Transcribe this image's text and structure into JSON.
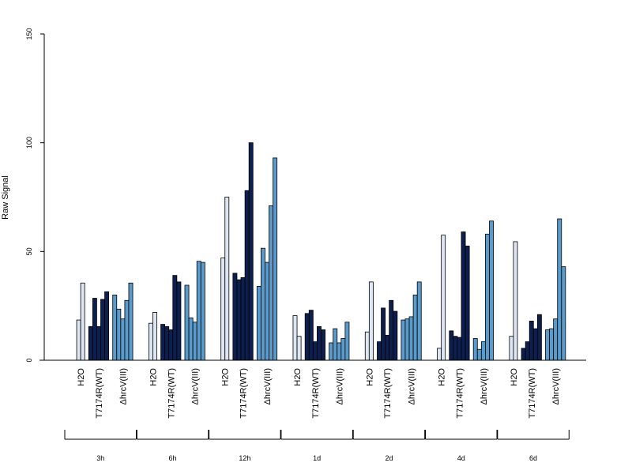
{
  "chart_data": {
    "type": "bar",
    "ylabel": "Raw Signal",
    "ylim": [
      0,
      150
    ],
    "yticks": [
      "0",
      "50",
      "100",
      "150"
    ],
    "grid": false,
    "legend": "none",
    "colors": {
      "H2O": "#dde6f2",
      "T717": "#0d1f4f",
      "hrcV": "#5a9bcb"
    },
    "groups": [
      {
        "time": "3h",
        "conditions": [
          {
            "label": "H2O",
            "values": [
              18.5,
              35.5
            ]
          },
          {
            "label": "T717",
            "values": [
              15.5,
              28.5,
              15.5,
              28.0,
              31.5
            ]
          },
          {
            "label": "ΔhrcV(III)",
            "values": [
              30.0,
              23.5,
              19.0,
              27.5,
              35.5
            ]
          }
        ]
      },
      {
        "time": "6h",
        "conditions": [
          {
            "label": "H2O",
            "values": [
              17.0,
              22.0
            ]
          },
          {
            "label": "T717",
            "values": [
              16.5,
              15.5,
              14.0,
              39.0,
              36.0
            ]
          },
          {
            "label": "ΔhrcV(III)",
            "values": [
              34.5,
              19.5,
              17.5,
              45.5,
              45.0
            ]
          }
        ]
      },
      {
        "time": "12h",
        "conditions": [
          {
            "label": "H2O",
            "values": [
              47.0,
              75.0
            ]
          },
          {
            "label": "T717",
            "values": [
              40.0,
              37.0,
              38.0,
              78.0,
              100.0
            ]
          },
          {
            "label": "ΔhrcV(III)",
            "values": [
              34.0,
              51.5,
              45.0,
              71.0,
              93.0
            ]
          }
        ]
      },
      {
        "time": "1d",
        "conditions": [
          {
            "label": "H2O",
            "values": [
              20.5,
              11.0
            ]
          },
          {
            "label": "T717",
            "values": [
              21.5,
              23.0,
              8.5,
              15.5,
              14.0
            ]
          },
          {
            "label": "ΔhrcV(III)",
            "values": [
              8.0,
              14.5,
              8.0,
              10.0,
              17.5
            ]
          }
        ]
      },
      {
        "time": "2d",
        "conditions": [
          {
            "label": "H2O",
            "values": [
              13.0,
              36.0
            ]
          },
          {
            "label": "T717",
            "values": [
              8.5,
              24.0,
              11.5,
              27.5,
              22.5
            ]
          },
          {
            "label": "ΔhrcV(III)",
            "values": [
              18.5,
              19.0,
              20.0,
              30.0,
              36.0
            ]
          }
        ]
      },
      {
        "time": "4d",
        "conditions": [
          {
            "label": "H2O",
            "values": [
              5.5,
              57.5
            ]
          },
          {
            "label": "T717",
            "values": [
              13.5,
              11.0,
              10.5,
              59.0,
              52.5
            ]
          },
          {
            "label": "ΔhrcV(III)",
            "values": [
              10.0,
              5.0,
              8.5,
              58.0,
              64.0
            ]
          }
        ]
      },
      {
        "time": "6d",
        "conditions": [
          {
            "label": "H2O",
            "values": [
              11.0,
              54.5
            ]
          },
          {
            "label": "T717",
            "values": [
              5.5,
              8.5,
              18.0,
              14.5,
              21.0
            ]
          },
          {
            "label": "ΔhrcV(III)",
            "values": [
              14.0,
              14.5,
              19.0,
              65.0,
              43.0
            ]
          }
        ]
      }
    ],
    "condition_labels": [
      "H2O",
      "T717",
      "ΔhrcV(III)"
    ],
    "condition_print_labels": [
      "H2O",
      "T717",
      "ΔhrcV(III)"
    ]
  }
}
